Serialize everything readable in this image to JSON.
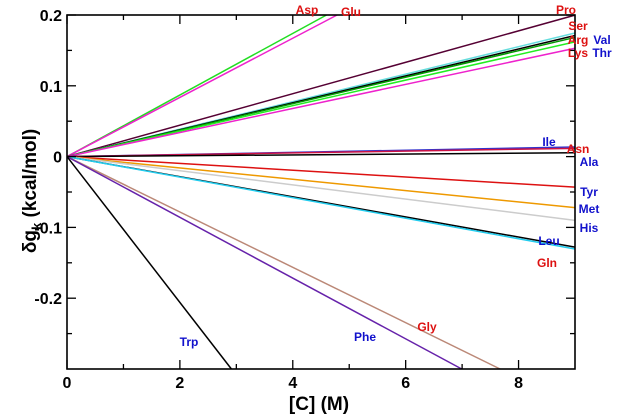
{
  "chart_data": {
    "type": "line",
    "title": "",
    "xlabel": "[C] (M)",
    "ylabel_main": "δg",
    "ylabel_sub": "k",
    "ylabel_rest": " (kcal/mol)",
    "xlim": [
      0,
      9
    ],
    "ylim": [
      -0.3,
      0.2
    ],
    "xticks": [
      0,
      2,
      4,
      6,
      8
    ],
    "xtick_labels": [
      "0",
      "2",
      "4",
      "6",
      "8"
    ],
    "yticks": [
      -0.2,
      -0.1,
      0,
      0.1,
      0.2
    ],
    "ytick_labels": [
      "-0.2",
      "-0.1",
      "0",
      "0.1",
      "0.2"
    ],
    "series": [
      {
        "name": "Asp",
        "slope": 0.0435,
        "color": "#22dd22",
        "label_color": "#dd1111"
      },
      {
        "name": "Glu",
        "slope": 0.0418,
        "color": "#ee22cc",
        "label_color": "#dd1111"
      },
      {
        "name": "Pro",
        "slope": 0.0222,
        "color": "#550033",
        "label_color": "#dd1111"
      },
      {
        "name": "Ser",
        "slope": 0.0194,
        "color": "#66dddd",
        "label_color": "#dd1111"
      },
      {
        "name": "Val",
        "slope": 0.019,
        "color": "#000000",
        "label_color": "#1111cc"
      },
      {
        "name": "Arg",
        "slope": 0.0187,
        "color": "#009900",
        "label_color": "#dd1111"
      },
      {
        "name": "Thr",
        "slope": 0.018,
        "color": "#22ee22",
        "label_color": "#1111cc"
      },
      {
        "name": "Lys",
        "slope": 0.017,
        "color": "#ee22cc",
        "label_color": "#dd1111"
      },
      {
        "name": "Ile",
        "slope": 0.0015,
        "color": "#3333cc",
        "label_color": "#1111cc"
      },
      {
        "name": "Asn",
        "slope": 0.0013,
        "color": "#cc1144",
        "label_color": "#dd1111"
      },
      {
        "name": "Ala",
        "slope": 0.0006,
        "color": "#000000",
        "label_color": "#1111cc"
      },
      {
        "name": "Tyr",
        "slope": -0.0048,
        "color": "#dd1111",
        "label_color": "#1111cc"
      },
      {
        "name": "Met",
        "slope": -0.008,
        "color": "#ee9900",
        "label_color": "#1111cc"
      },
      {
        "name": "His",
        "slope": -0.01,
        "color": "#cccccc",
        "label_color": "#1111cc"
      },
      {
        "name": "Leu",
        "slope": -0.0142,
        "color": "#000000",
        "label_color": "#1111cc"
      },
      {
        "name": "Gln",
        "slope": -0.0145,
        "color": "#22ccee",
        "label_color": "#dd1111"
      },
      {
        "name": "Gly",
        "slope": -0.0391,
        "color": "#bb8877",
        "label_color": "#dd1111"
      },
      {
        "name": "Phe",
        "slope": -0.0429,
        "color": "#6622aa",
        "label_color": "#1111cc"
      },
      {
        "name": "Trp",
        "slope": -0.103,
        "color": "#000000",
        "label_color": "#1111cc"
      }
    ]
  }
}
